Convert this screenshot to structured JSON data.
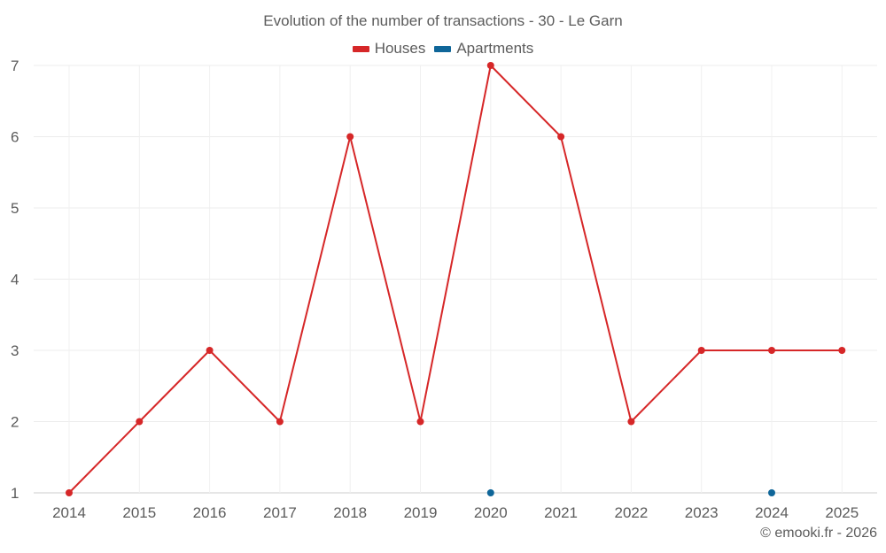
{
  "chart_data": {
    "type": "line",
    "title": "Evolution of the number of transactions - 30 - Le Garn",
    "xlabel": "",
    "ylabel": "",
    "categories": [
      "2014",
      "2015",
      "2016",
      "2017",
      "2018",
      "2019",
      "2020",
      "2021",
      "2022",
      "2023",
      "2024",
      "2025"
    ],
    "series": [
      {
        "name": "Houses",
        "color": "#d62728",
        "values": [
          1,
          2,
          3,
          2,
          6,
          2,
          7,
          6,
          2,
          3,
          3,
          3
        ]
      },
      {
        "name": "Apartments",
        "color": "#0f6699",
        "values": [
          null,
          null,
          null,
          null,
          null,
          null,
          1,
          null,
          null,
          null,
          1,
          null
        ]
      }
    ],
    "ylim": [
      1,
      7
    ],
    "yticks": [
      1,
      2,
      3,
      4,
      5,
      6,
      7
    ],
    "grid": true,
    "legend_position": "top-center"
  },
  "credit": "© emooki.fr - 2026"
}
